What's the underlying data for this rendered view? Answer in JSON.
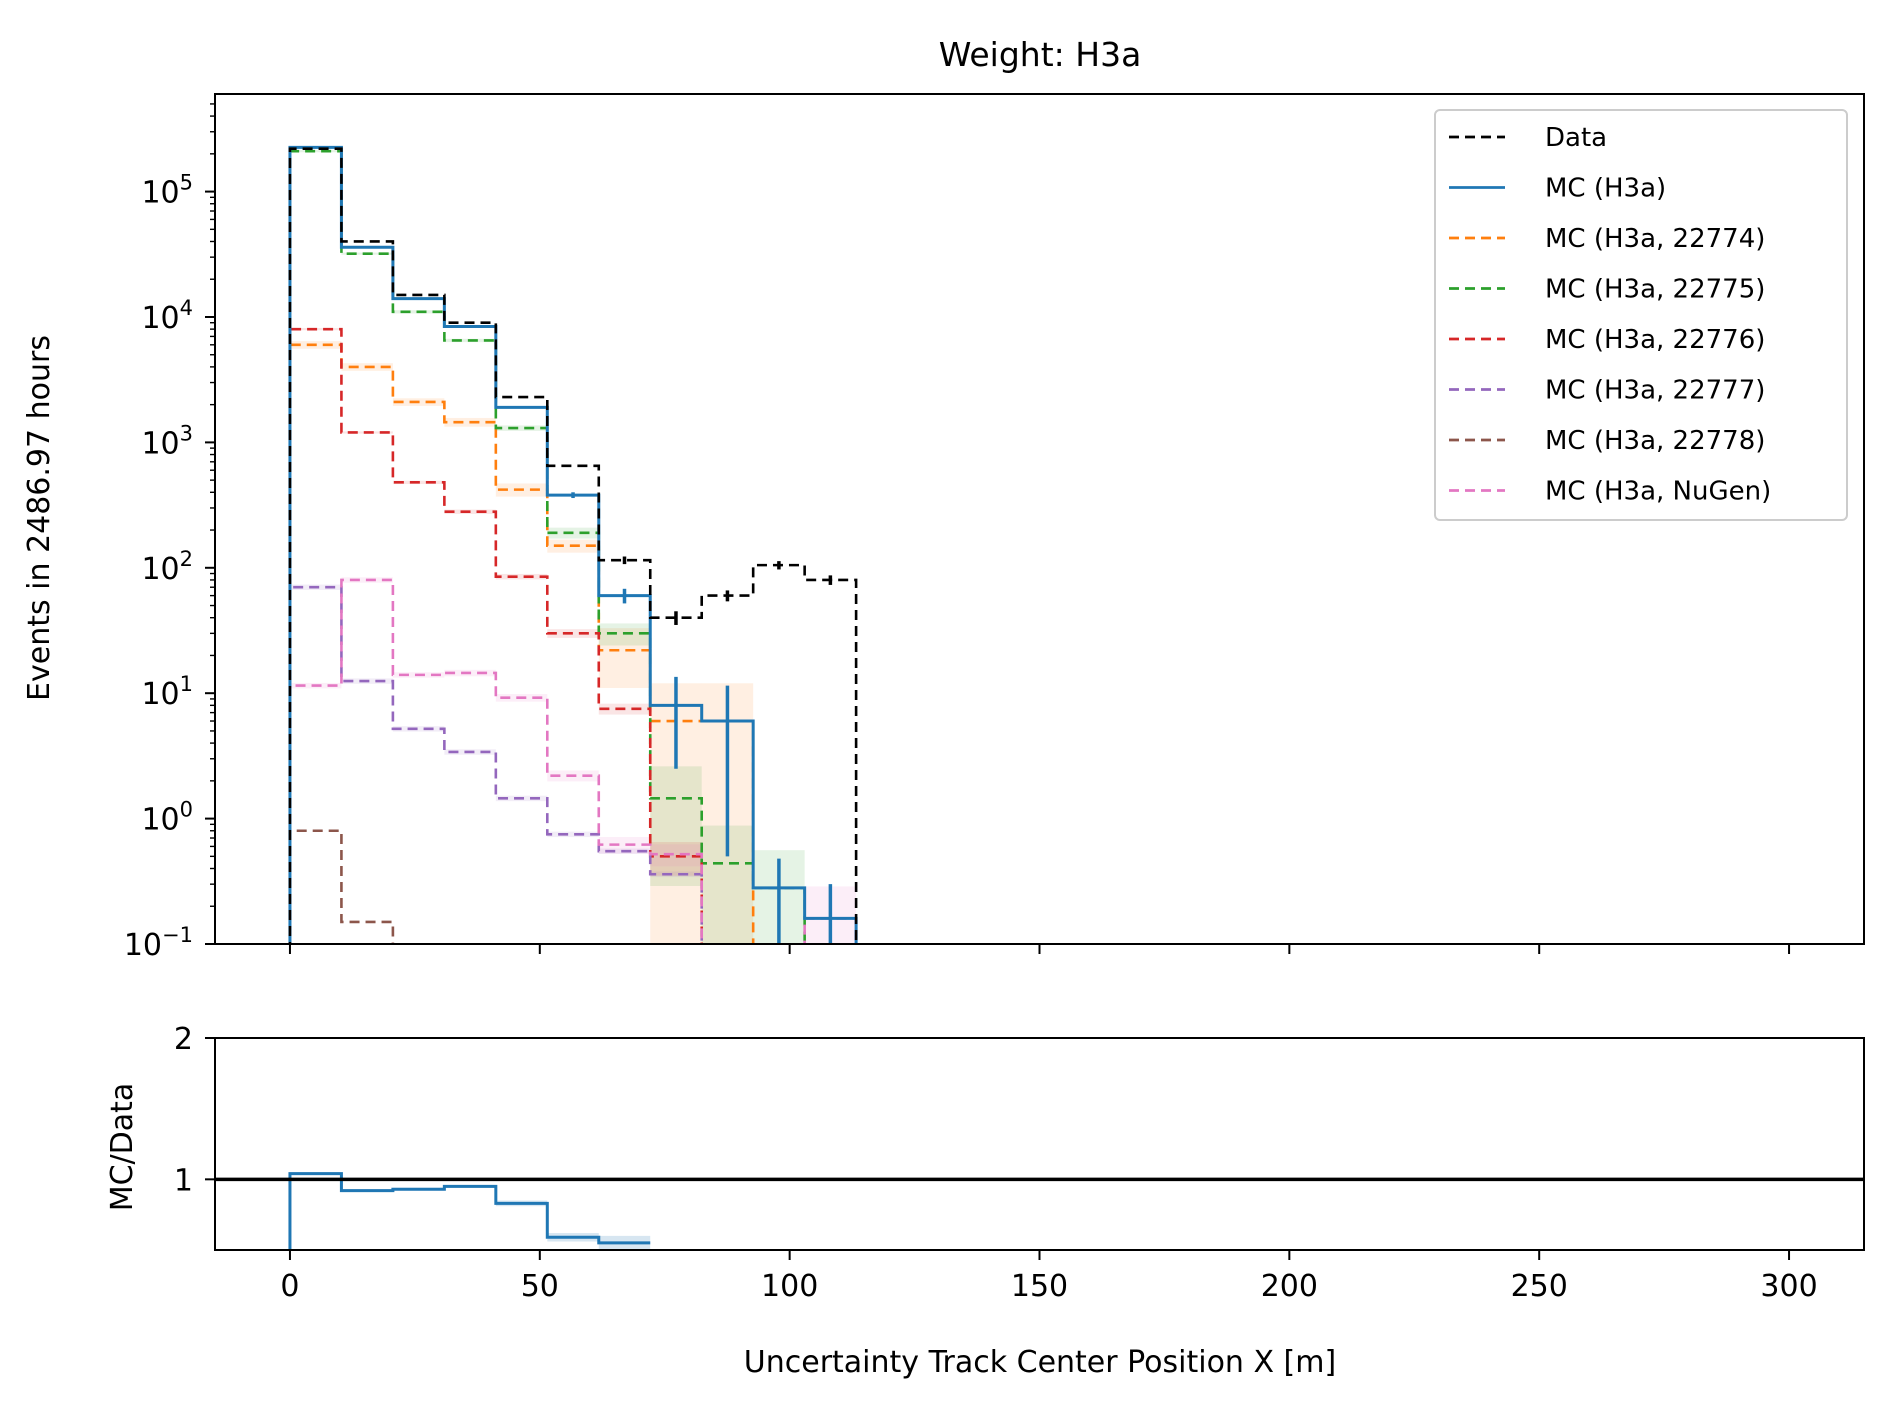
{
  "figure": {
    "title": "Weight: H3a",
    "xlabel": "Uncertainty Track Center Position X [m]"
  },
  "chart_data": [
    {
      "type": "step-histogram",
      "panel": "main",
      "title": "Weight: H3a",
      "ylabel": "Events in 2486.97 hours",
      "yscale": "log",
      "xlim": [
        -15,
        315
      ],
      "ylim": [
        0.1,
        600000
      ],
      "x_ticks": [
        0,
        50,
        100,
        150,
        200,
        250,
        300
      ],
      "y_ticks": [
        {
          "value": 0.1,
          "base": "10",
          "exp": "−1"
        },
        {
          "value": 1,
          "base": "10",
          "exp": "0"
        },
        {
          "value": 10,
          "base": "10",
          "exp": "1"
        },
        {
          "value": 100,
          "base": "10",
          "exp": "2"
        },
        {
          "value": 1000,
          "base": "10",
          "exp": "3"
        },
        {
          "value": 10000,
          "base": "10",
          "exp": "4"
        },
        {
          "value": 100000,
          "base": "10",
          "exp": "5"
        }
      ],
      "bin_edges": [
        0,
        10.3,
        20.6,
        30.9,
        41.2,
        51.5,
        61.8,
        72.1,
        82.4,
        92.7,
        103.0,
        113.3
      ],
      "legend_position": "upper-right",
      "series": [
        {
          "name": "Data",
          "color": "#000000",
          "dash": true,
          "values": [
            220000,
            40000,
            15000,
            9000,
            2300,
            650,
            115,
            40,
            60,
            105,
            80
          ],
          "errors": [
            0,
            0,
            0,
            0,
            0,
            0,
            8,
            5,
            6,
            8,
            7
          ]
        },
        {
          "name": "MC (H3a)",
          "color": "#1f77b4",
          "dash": false,
          "values": [
            225000,
            36000,
            14000,
            8400,
            1900,
            380,
            60,
            8,
            6,
            0.28,
            0.16
          ],
          "errors": [
            0,
            0,
            0,
            0,
            0,
            20,
            8,
            5.5,
            5.5,
            0.2,
            0.14
          ]
        },
        {
          "name": "MC (H3a, 22774)",
          "color": "#ff7f0e",
          "dash": true,
          "values": [
            6000,
            4000,
            2100,
            1450,
            420,
            150,
            22,
            6,
            6,
            null,
            null
          ],
          "band": [
            0.07,
            0.07,
            0.07,
            0.08,
            0.12,
            0.12,
            0.5,
            1.0,
            1.0,
            0,
            0
          ]
        },
        {
          "name": "MC (H3a, 22775)",
          "color": "#2ca02c",
          "dash": true,
          "values": [
            210000,
            32000,
            11000,
            6500,
            1300,
            190,
            30,
            1.45,
            0.44,
            0.28,
            null
          ],
          "band": [
            0.02,
            0.02,
            0.03,
            0.03,
            0.05,
            0.1,
            0.2,
            0.8,
            1.0,
            1.0,
            0
          ]
        },
        {
          "name": "MC (H3a, 22776)",
          "color": "#d62728",
          "dash": true,
          "values": [
            8000,
            1200,
            480,
            280,
            85,
            30,
            7.5,
            0.5,
            null,
            null,
            null
          ],
          "band": [
            0.02,
            0.02,
            0.03,
            0.04,
            0.05,
            0.08,
            0.1,
            0.3,
            0,
            0,
            0
          ]
        },
        {
          "name": "MC (H3a, 22777)",
          "color": "#9467bd",
          "dash": true,
          "values": [
            70,
            12.5,
            5.2,
            3.4,
            1.45,
            0.75,
            0.55,
            0.36,
            null,
            null,
            null
          ],
          "band": [
            0.05,
            0.05,
            0.05,
            0.05,
            0.05,
            0.05,
            0.05,
            0.05,
            0,
            0,
            0
          ]
        },
        {
          "name": "MC (H3a, 22778)",
          "color": "#8c564b",
          "dash": true,
          "values": [
            0.8,
            0.15,
            null,
            null,
            null,
            null,
            null,
            null,
            null,
            null,
            null
          ],
          "band": [
            0,
            0,
            0,
            0,
            0,
            0,
            0,
            0,
            0,
            0,
            0
          ]
        },
        {
          "name": "MC (H3a, NuGen)",
          "color": "#e377c2",
          "dash": true,
          "values": [
            11.5,
            80,
            14,
            14.5,
            9.2,
            2.2,
            0.62,
            0.52,
            null,
            null,
            0.16
          ],
          "band": [
            0.05,
            0.05,
            0.05,
            0.06,
            0.07,
            0.1,
            0.15,
            0.2,
            0,
            0,
            0.8
          ]
        }
      ]
    },
    {
      "type": "step-histogram",
      "panel": "ratio",
      "ylabel": "MC/Data",
      "xlabel": "Uncertainty Track Center Position X [m]",
      "xlim": [
        -15,
        315
      ],
      "ylim": [
        0.5,
        2
      ],
      "y_ticks": [
        1,
        2
      ],
      "x_ticks": [
        0,
        50,
        100,
        150,
        200,
        250,
        300
      ],
      "reference_line": 1,
      "series": [
        {
          "name": "MC (H3a)",
          "color": "#1f77b4",
          "values": [
            1.04,
            0.92,
            0.93,
            0.95,
            0.83,
            0.59,
            0.55
          ],
          "band": [
            0.01,
            0.01,
            0.01,
            0.01,
            0.02,
            0.03,
            0.05
          ]
        }
      ]
    }
  ]
}
